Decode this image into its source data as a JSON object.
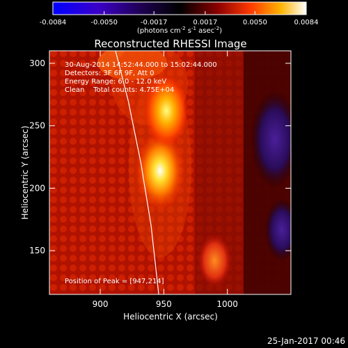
{
  "chart_data": {
    "type": "heatmap",
    "title": "Reconstructed RHESSI Image",
    "xlabel": "Heliocentric X (arcsec)",
    "ylabel": "Heliocentric Y (arcsec)",
    "xlim": [
      860,
      1050
    ],
    "ylim": [
      115,
      310
    ],
    "x_ticks": [
      900,
      950,
      1000
    ],
    "y_ticks": [
      150,
      200,
      250,
      300
    ],
    "colorbar": {
      "range": [
        -0.0084,
        0.0084
      ],
      "tick_values": [
        -0.0084,
        -0.005,
        -0.0017,
        0.0017,
        0.005,
        0.0084
      ],
      "tick_labels": [
        "-0.0084",
        "-0.0050",
        "-0.0017",
        "0.0017",
        "0.0050",
        "0.0084"
      ],
      "label_main": "(photons cm",
      "label_exp1": "-2",
      "label_mid": " s",
      "label_exp2": "-1",
      "label_mid2": " asec",
      "label_exp3": "-2",
      "label_end": ")"
    },
    "annotations": {
      "time_range": "30-Aug-2014 14:52:44.000 to 15:02:44.000",
      "detectors": "Detectors: 3F 6F 9F, Att 0",
      "energy": "Energy Range: 6.0 - 12.0 keV",
      "clean": "Clean    Total counts: 4.75E+04",
      "peak": "Position of Peak = [947,214]"
    },
    "sources": [
      {
        "x": 947,
        "y": 214,
        "peak": 0.0084
      },
      {
        "x": 952,
        "y": 262,
        "peak": 0.0068
      },
      {
        "x": 990,
        "y": 142,
        "peak": 0.004
      }
    ],
    "limb_curve": [
      [
        912,
        310
      ],
      [
        922,
        270
      ],
      [
        932,
        220
      ],
      [
        940,
        170
      ],
      [
        946,
        115
      ]
    ],
    "colors": {
      "limb": "#ffffff",
      "negative": "#3b1d8f",
      "background": "#000000"
    }
  },
  "timestamp": "25-Jan-2017 00:46"
}
